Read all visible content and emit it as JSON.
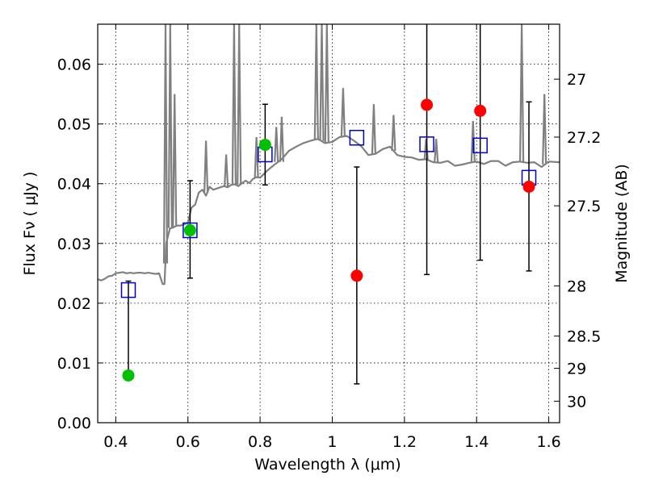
{
  "chart_data": {
    "type": "scatter",
    "xlabel": "Wavelength  λ (μm)",
    "ylabel": "Flux  Fν  ( μJy )",
    "y2label": "Magnitude (AB)",
    "xlim": [
      0.35,
      1.63
    ],
    "ylim": [
      0.0,
      0.0667
    ],
    "x_ticks": [
      0.4,
      0.6,
      0.8,
      1.0,
      1.2,
      1.4,
      1.6
    ],
    "x_tick_labels": [
      "0.4",
      "0.6",
      "0.8",
      "1",
      "1.2",
      "1.4",
      "1.6"
    ],
    "y_ticks": [
      0.0,
      0.01,
      0.02,
      0.03,
      0.04,
      0.05,
      0.06
    ],
    "y_tick_labels": [
      "0.00",
      "0.01",
      "0.02",
      "0.03",
      "0.04",
      "0.05",
      "0.06"
    ],
    "y2_ticks": [
      {
        "label": "27",
        "flux": 0.0575
      },
      {
        "label": "27.2",
        "flux": 0.0478
      },
      {
        "label": "27.5",
        "flux": 0.0363
      },
      {
        "label": "28",
        "flux": 0.0229
      },
      {
        "label": "28.5",
        "flux": 0.0145
      },
      {
        "label": "29",
        "flux": 0.0091
      },
      {
        "label": "30",
        "flux": 0.0036
      }
    ],
    "grid": true,
    "colors": {
      "sed": "#808080",
      "observed_green": "#00c000",
      "observed_red": "#ff0000",
      "model": "#0000cc",
      "errorbar": "#000000"
    },
    "series": [
      {
        "role": "sed",
        "type": "line",
        "x": [
          0.35,
          0.36,
          0.37,
          0.38,
          0.39,
          0.4,
          0.41,
          0.42,
          0.43,
          0.44,
          0.45,
          0.46,
          0.47,
          0.48,
          0.49,
          0.5,
          0.51,
          0.52,
          0.53,
          0.535,
          0.54,
          0.55,
          0.56,
          0.57,
          0.58,
          0.59,
          0.6,
          0.61,
          0.62,
          0.63,
          0.64,
          0.65,
          0.66,
          0.67,
          0.68,
          0.69,
          0.7,
          0.71,
          0.72,
          0.73,
          0.74,
          0.75,
          0.76,
          0.77,
          0.78,
          0.79,
          0.8,
          0.82,
          0.84,
          0.86,
          0.88,
          0.9,
          0.92,
          0.94,
          0.96,
          0.98,
          1.0,
          1.02,
          1.04,
          1.06,
          1.08,
          1.1,
          1.12,
          1.14,
          1.16,
          1.18,
          1.2,
          1.22,
          1.24,
          1.26,
          1.28,
          1.3,
          1.32,
          1.34,
          1.36,
          1.38,
          1.4,
          1.42,
          1.44,
          1.46,
          1.48,
          1.5,
          1.52,
          1.54,
          1.56,
          1.58,
          1.6,
          1.63
        ],
        "y": [
          0.024,
          0.0238,
          0.0241,
          0.0245,
          0.0246,
          0.025,
          0.0251,
          0.0252,
          0.025,
          0.0251,
          0.025,
          0.0251,
          0.0251,
          0.025,
          0.0251,
          0.025,
          0.0249,
          0.025,
          0.0232,
          0.0232,
          0.0301,
          0.0325,
          0.0327,
          0.033,
          0.033,
          0.0332,
          0.0335,
          0.036,
          0.0365,
          0.0385,
          0.039,
          0.038,
          0.0395,
          0.039,
          0.0392,
          0.0394,
          0.0396,
          0.0394,
          0.0398,
          0.0399,
          0.0396,
          0.0401,
          0.0405,
          0.0401,
          0.0408,
          0.0411,
          0.041,
          0.0422,
          0.0432,
          0.0441,
          0.0455,
          0.0462,
          0.0468,
          0.0472,
          0.0475,
          0.0468,
          0.047,
          0.0478,
          0.048,
          0.0472,
          0.0463,
          0.0448,
          0.045,
          0.0458,
          0.0462,
          0.0448,
          0.0445,
          0.0444,
          0.044,
          0.0441,
          0.0436,
          0.0435,
          0.0438,
          0.043,
          0.0432,
          0.0435,
          0.0437,
          0.0433,
          0.0438,
          0.0438,
          0.043,
          0.0436,
          0.0437,
          0.0435,
          0.0436,
          0.0428,
          0.0437,
          0.0436
        ]
      },
      {
        "role": "observed_green",
        "type": "scatter",
        "x": [
          0.435,
          0.606,
          0.814
        ],
        "y": [
          0.0079,
          0.0322,
          0.0465
        ],
        "yerr_low": [
          0.0079,
          0.0242,
          0.0398
        ],
        "yerr_high": [
          0.0237,
          0.0405,
          0.0533
        ]
      },
      {
        "role": "observed_red",
        "type": "scatter",
        "x": [
          1.068,
          1.262,
          1.41,
          1.545
        ],
        "y": [
          0.0246,
          0.0532,
          0.0522,
          0.0395
        ],
        "yerr_low": [
          0.0065,
          0.0248,
          0.0272,
          0.0254
        ],
        "yerr_high": [
          0.0428,
          0.0667,
          0.0667,
          0.0537
        ]
      },
      {
        "role": "model",
        "type": "scatter",
        "marker": "open-square",
        "x": [
          0.435,
          0.606,
          0.814,
          1.068,
          1.262,
          1.41,
          1.545
        ],
        "y": [
          0.0222,
          0.0322,
          0.0449,
          0.0477,
          0.0466,
          0.0464,
          0.041
        ]
      }
    ]
  }
}
